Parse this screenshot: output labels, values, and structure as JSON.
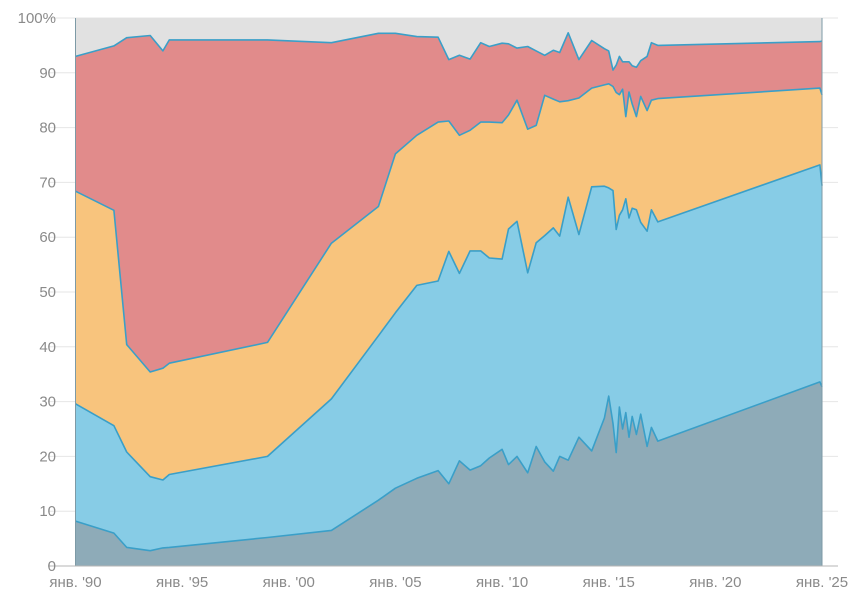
{
  "chart_data": {
    "type": "area",
    "stacked": true,
    "title": "",
    "xlabel": "",
    "ylabel": "",
    "ylim": [
      0,
      100
    ],
    "xlim": [
      1989.5,
      2025.3
    ],
    "grid": true,
    "legend": "none",
    "y_ticks": [
      {
        "value": 0,
        "label": "0"
      },
      {
        "value": 10,
        "label": "10"
      },
      {
        "value": 20,
        "label": "20"
      },
      {
        "value": 30,
        "label": "30"
      },
      {
        "value": 40,
        "label": "40"
      },
      {
        "value": 50,
        "label": "50"
      },
      {
        "value": 60,
        "label": "60"
      },
      {
        "value": 70,
        "label": "70"
      },
      {
        "value": 80,
        "label": "80"
      },
      {
        "value": 90,
        "label": "90"
      },
      {
        "value": 100,
        "label": "100%"
      }
    ],
    "x_ticks": [
      {
        "value": 1990,
        "label": "янв. '90"
      },
      {
        "value": 1995,
        "label": "янв. '95"
      },
      {
        "value": 2000,
        "label": "янв. '00"
      },
      {
        "value": 2005,
        "label": "янв. '05"
      },
      {
        "value": 2010,
        "label": "янв. '10"
      },
      {
        "value": 2015,
        "label": "янв. '15"
      },
      {
        "value": 2020,
        "label": "янв. '20"
      },
      {
        "value": 2025,
        "label": "янв. '25"
      }
    ],
    "x": [
      1990.0,
      1991.8,
      1992.4,
      1993.5,
      1994.1,
      1994.4,
      1999.0,
      2002.0,
      2004.2,
      2005.0,
      2006.0,
      2007.0,
      2007.5,
      2008.0,
      2008.5,
      2009.0,
      2009.4,
      2010.0,
      2010.3,
      2010.7,
      2011.2,
      2011.6,
      2012.0,
      2012.4,
      2012.7,
      2013.1,
      2013.6,
      2014.2,
      2014.8,
      2015.0,
      2015.2,
      2015.35,
      2015.5,
      2015.65,
      2015.8,
      2015.95,
      2016.1,
      2016.3,
      2016.5,
      2016.8,
      2017.0,
      2017.3,
      2024.9,
      2025.0
    ],
    "series": [
      {
        "key": "s1",
        "color": "#8eabb8",
        "values": [
          8.2,
          6.0,
          3.4,
          2.8,
          3.3,
          3.4,
          5.2,
          6.5,
          12.0,
          14.2,
          16.0,
          17.4,
          15.0,
          19.2,
          17.5,
          18.3,
          19.7,
          21.3,
          18.5,
          20.0,
          17.0,
          21.8,
          19.0,
          17.3,
          20.0,
          19.3,
          23.5,
          21.0,
          27.0,
          31.0,
          26.0,
          20.7,
          29.0,
          25.0,
          28.0,
          23.5,
          27.3,
          24.0,
          27.7,
          21.8,
          25.3,
          22.8,
          33.6,
          32.7
        ]
      },
      {
        "key": "s2",
        "color": "#87cce6",
        "values": [
          21.4,
          19.6,
          17.4,
          13.5,
          12.4,
          13.3,
          14.8,
          24.0,
          30.0,
          32.0,
          35.2,
          34.6,
          42.4,
          34.2,
          40.0,
          39.2,
          36.5,
          34.7,
          43.0,
          42.9,
          36.5,
          37.2,
          41.3,
          44.4,
          40.2,
          48.0,
          37.0,
          48.2,
          42.3,
          38.0,
          42.5,
          40.7,
          35.0,
          40.0,
          39.0,
          40.0,
          38.0,
          41.0,
          35.0,
          39.3,
          39.7,
          40.0,
          39.6,
          36.7
        ]
      },
      {
        "key": "s3",
        "color": "#f8c47d",
        "values": [
          38.8,
          39.3,
          19.6,
          19.1,
          20.4,
          20.3,
          20.8,
          28.4,
          23.6,
          29.0,
          27.4,
          29.0,
          23.8,
          25.2,
          22.0,
          23.5,
          24.8,
          24.9,
          20.8,
          22.1,
          26.2,
          21.4,
          25.6,
          23.5,
          24.5,
          17.6,
          24.9,
          18.0,
          18.5,
          19.0,
          19.0,
          25.0,
          22.0,
          22.0,
          15.0,
          23.0,
          19.0,
          17.0,
          23.0,
          22.0,
          20.0,
          22.5,
          14.0,
          16.6
        ]
      },
      {
        "key": "s4",
        "color": "#e18b8b",
        "values": [
          24.6,
          30.0,
          56.0,
          61.4,
          57.9,
          59.0,
          55.2,
          36.6,
          31.6,
          22.0,
          18.0,
          15.5,
          11.2,
          14.6,
          13.0,
          14.5,
          13.8,
          14.5,
          13.0,
          9.5,
          15.1,
          13.6,
          7.3,
          8.9,
          9.0,
          12.4,
          7.0,
          8.7,
          6.6,
          6.0,
          3.0,
          5.0,
          7.0,
          5.0,
          10.0,
          5.5,
          7.0,
          9.0,
          6.5,
          9.9,
          10.5,
          9.7,
          8.5,
          9.8
        ]
      },
      {
        "key": "s5",
        "color": "#e1e1e1",
        "values": [
          7.0,
          5.1,
          3.6,
          3.2,
          6.0,
          4.0,
          4.0,
          4.5,
          2.8,
          2.8,
          3.4,
          3.5,
          7.6,
          6.8,
          7.5,
          4.5,
          5.2,
          4.6,
          4.7,
          5.5,
          5.2,
          6.0,
          6.8,
          5.9,
          6.3,
          2.7,
          7.6,
          4.1,
          5.6,
          6.0,
          9.5,
          8.6,
          7.0,
          8.0,
          8.0,
          8.0,
          8.7,
          9.0,
          7.8,
          7.0,
          4.5,
          5.0,
          4.3,
          4.2
        ]
      }
    ]
  }
}
